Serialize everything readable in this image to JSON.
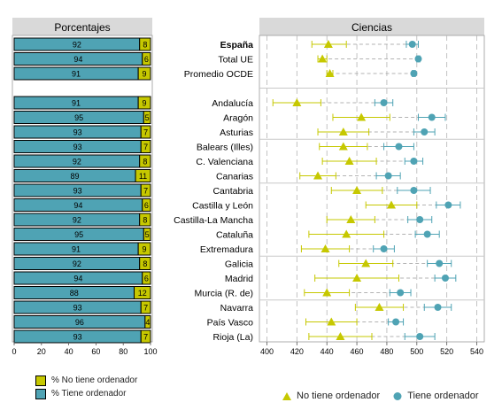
{
  "colors": {
    "no": "#c6c800",
    "yes": "#4fa3b4",
    "panel": "#ebebeb",
    "strip": "#d9d9d9"
  },
  "left_panel": {
    "title": "Porcentajes"
  },
  "right_panel": {
    "title": "Ciencias"
  },
  "chart_data": [
    {
      "type": "bar",
      "orientation": "horizontal",
      "stacked": true,
      "title": "Porcentajes",
      "xlim": [
        0,
        100
      ],
      "xticks": [
        0,
        20,
        40,
        60,
        80,
        100
      ],
      "categories": [
        "España",
        "Total UE",
        "Promedio OCDE",
        "Andalucía",
        "Aragón",
        "Asturias",
        "Balears (Illes)",
        "C. Valenciana",
        "Canarias",
        "Cantabria",
        "Castilla y León",
        "Castilla-La Mancha",
        "Cataluña",
        "Extremadura",
        "Galicia",
        "Madrid",
        "Murcia (R. de)",
        "Navarra",
        "País Vasco",
        "Rioja (La)"
      ],
      "series": [
        {
          "name": "% Tiene ordenador",
          "values": [
            92,
            94,
            91,
            91,
            95,
            93,
            93,
            92,
            89,
            93,
            94,
            92,
            95,
            91,
            92,
            94,
            88,
            93,
            96,
            93
          ]
        },
        {
          "name": "% No tiene ordenador",
          "values": [
            8,
            6,
            9,
            9,
            5,
            7,
            7,
            8,
            11,
            7,
            6,
            8,
            5,
            9,
            8,
            6,
            12,
            7,
            4,
            7
          ]
        }
      ]
    },
    {
      "type": "scatter",
      "title": "Ciencias",
      "xlim": [
        395,
        545
      ],
      "xticks": [
        400,
        420,
        440,
        460,
        480,
        500,
        520,
        540
      ],
      "categories": [
        "España",
        "Total UE",
        "Promedio OCDE",
        "Andalucía",
        "Aragón",
        "Asturias",
        "Balears (Illes)",
        "C. Valenciana",
        "Canarias",
        "Cantabria",
        "Castilla y León",
        "Castilla-La Mancha",
        "Cataluña",
        "Extremadura",
        "Galicia",
        "Madrid",
        "Murcia (R. de)",
        "Navarra",
        "País Vasco",
        "Rioja (La)"
      ],
      "bold_categories": [
        "España"
      ],
      "legend": "bottom",
      "series": [
        {
          "name": "No tiene ordenador",
          "marker": "triangle",
          "values": [
            441,
            437,
            442,
            420,
            463,
            451,
            451,
            455,
            434,
            460,
            483,
            456,
            453,
            439,
            466,
            460,
            440,
            475,
            443,
            449
          ],
          "lower": [
            430,
            434,
            440,
            404,
            444,
            434,
            435,
            437,
            422,
            443,
            466,
            440,
            428,
            423,
            448,
            432,
            425,
            459,
            426,
            428
          ],
          "upper": [
            453,
            440,
            444,
            436,
            482,
            468,
            467,
            473,
            446,
            477,
            500,
            472,
            478,
            455,
            484,
            488,
            455,
            491,
            460,
            470
          ]
        },
        {
          "name": "Tiene ordenador",
          "marker": "circle",
          "values": [
            497,
            501,
            498,
            478,
            510,
            505,
            488,
            498,
            481,
            498,
            521,
            502,
            507,
            478,
            515,
            519,
            489,
            514,
            486,
            502
          ],
          "lower": [
            493,
            500,
            497,
            472,
            501,
            498,
            478,
            492,
            473,
            487,
            513,
            494,
            499,
            471,
            507,
            512,
            482,
            505,
            481,
            492
          ],
          "upper": [
            501,
            502,
            499,
            484,
            519,
            512,
            498,
            504,
            489,
            509,
            529,
            510,
            515,
            485,
            523,
            526,
            496,
            523,
            491,
            512
          ]
        }
      ]
    }
  ]
}
